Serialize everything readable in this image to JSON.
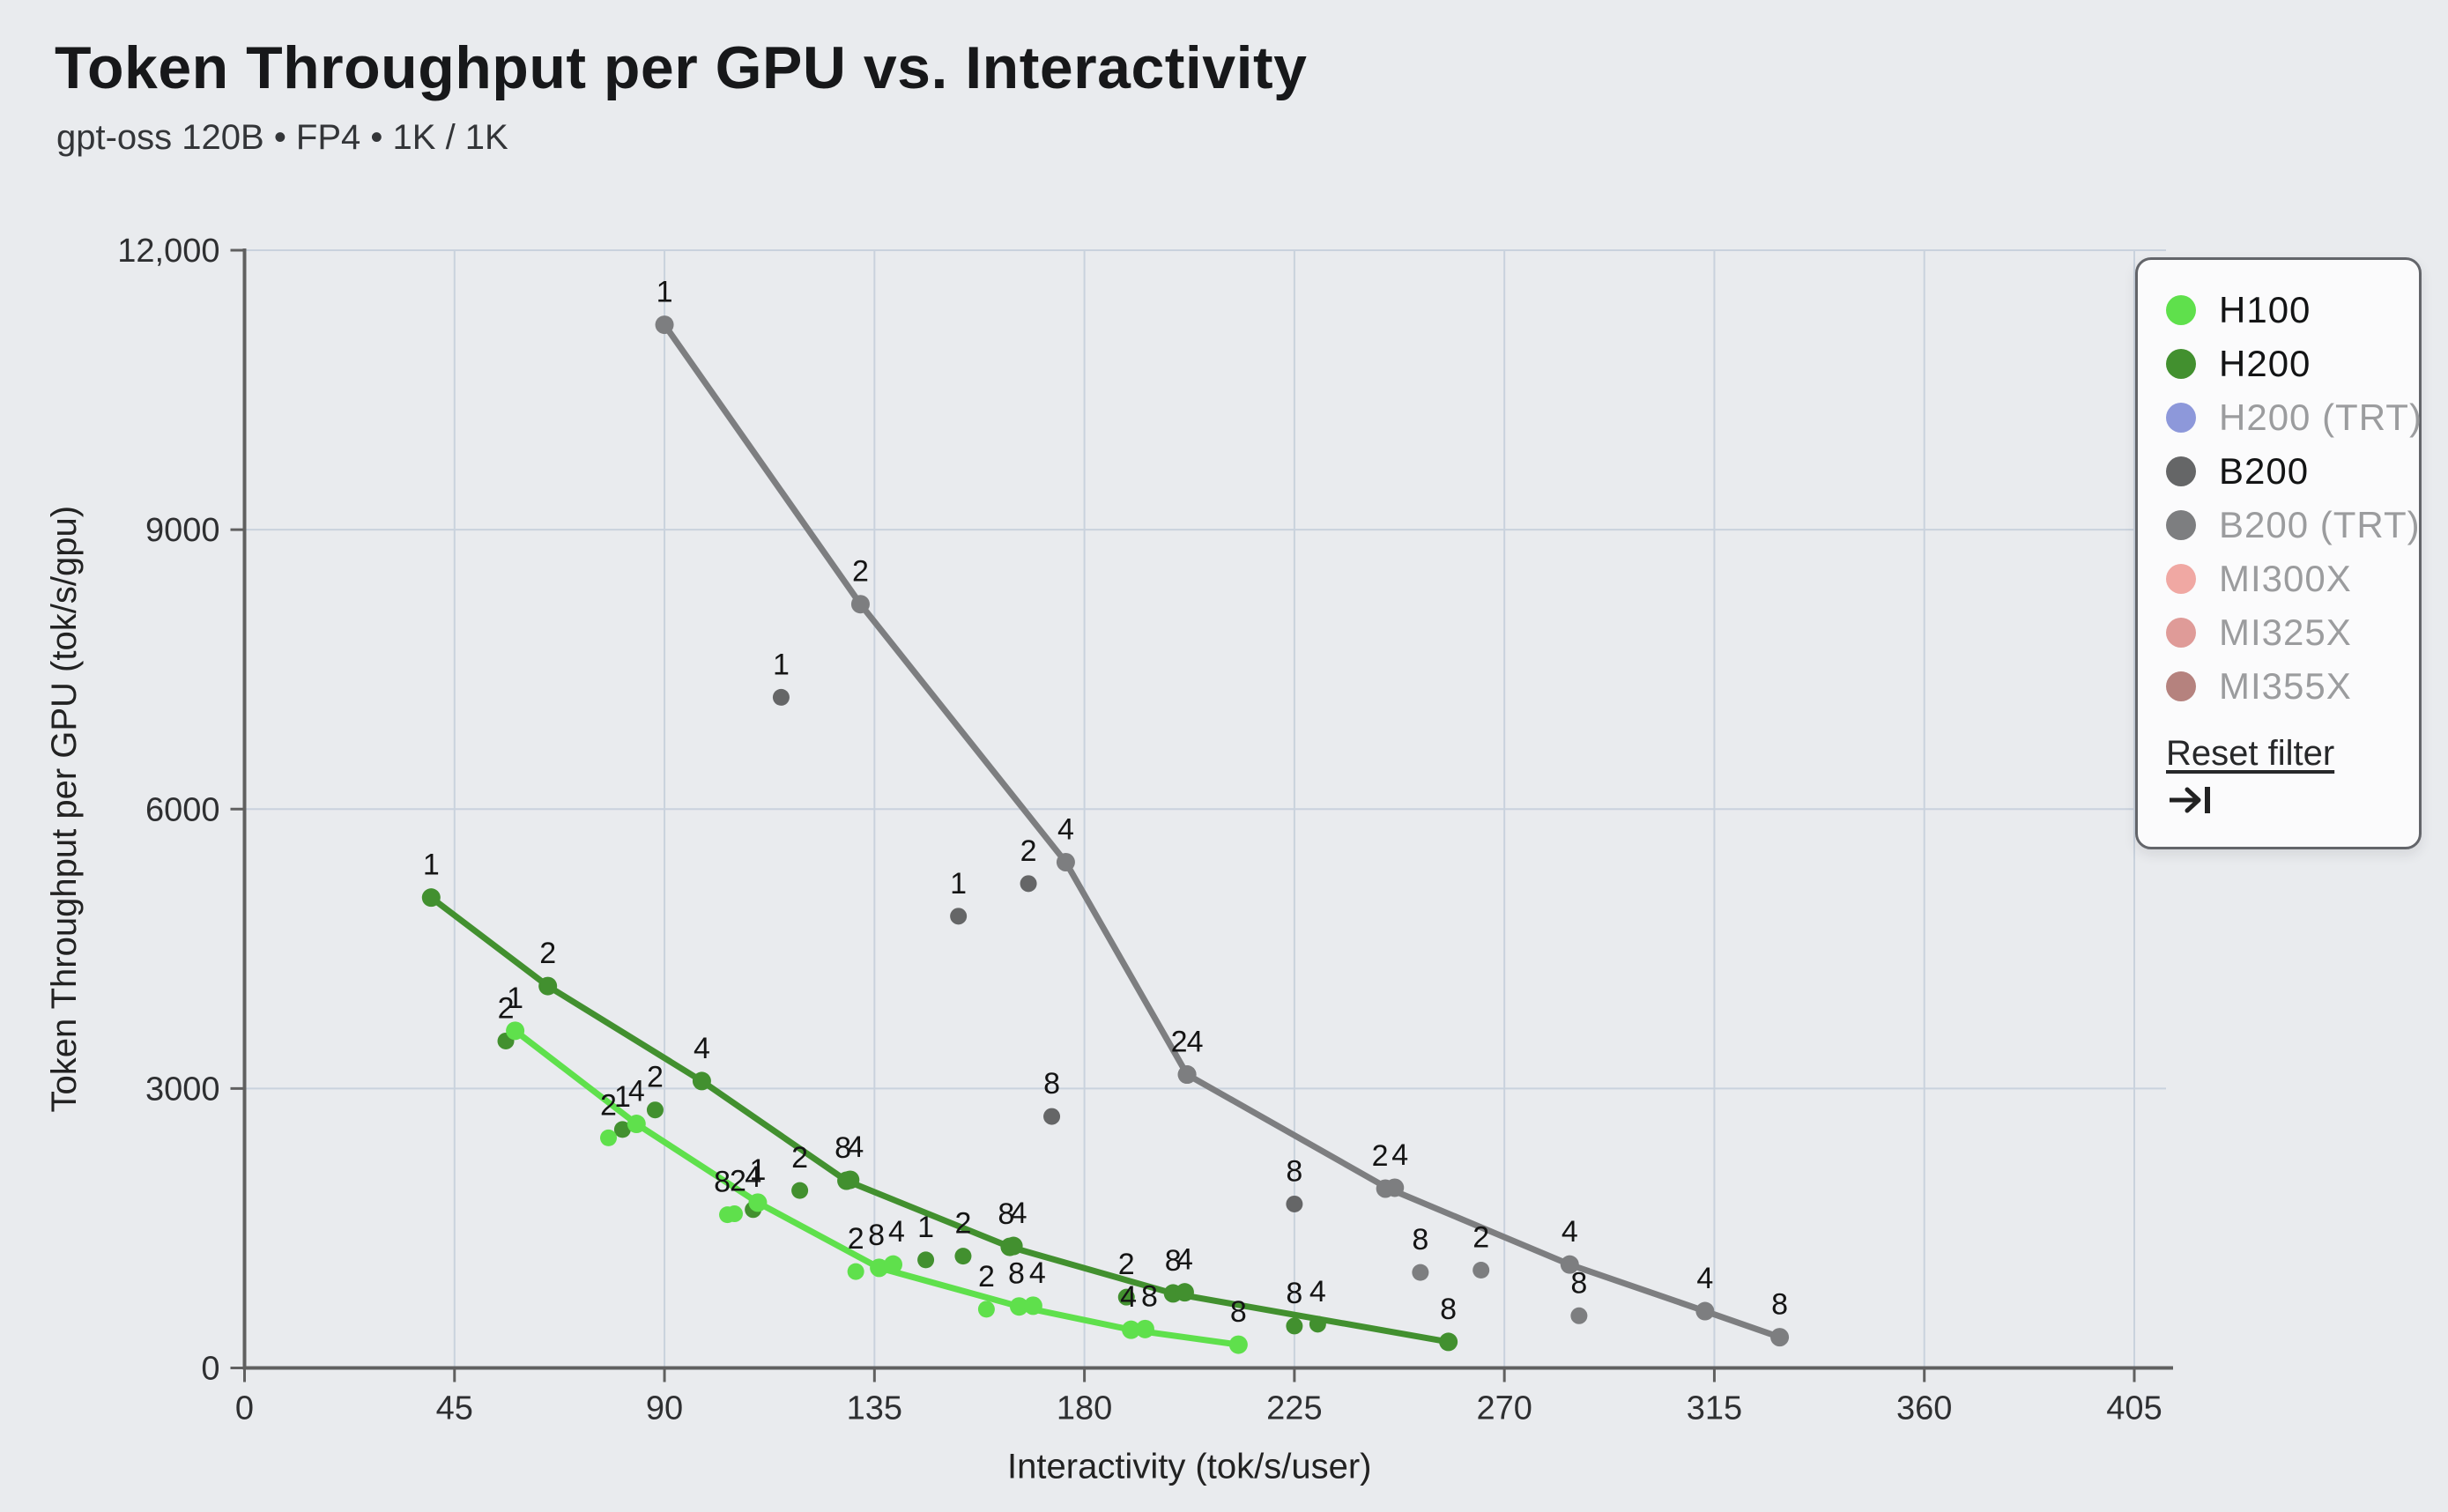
{
  "header": {
    "title": "Token Throughput per GPU vs. Interactivity",
    "subtitle": "gpt-oss 120B • FP4 • 1K / 1K"
  },
  "legend": {
    "items": [
      {
        "label": "H100",
        "color": "#5fe04c",
        "dimmed": false
      },
      {
        "label": "H200",
        "color": "#42902f",
        "dimmed": false
      },
      {
        "label": "H200 (TRT)",
        "color": "#8d98da",
        "dimmed": true
      },
      {
        "label": "B200",
        "color": "#656667",
        "dimmed": false
      },
      {
        "label": "B200 (TRT)",
        "color": "#7d7e80",
        "dimmed": true
      },
      {
        "label": "MI300X",
        "color": "#f0a8a3",
        "dimmed": true
      },
      {
        "label": "MI325X",
        "color": "#df9b98",
        "dimmed": true
      },
      {
        "label": "MI355X",
        "color": "#b5827e",
        "dimmed": true
      }
    ],
    "reset_label": "Reset filter",
    "reset_icon": "arrow-right-to-bar"
  },
  "chart_data": {
    "type": "scatter",
    "title": "Token Throughput per GPU vs. Interactivity",
    "xlabel": "Interactivity (tok/s/user)",
    "ylabel": "Token Throughput per GPU (tok/s/gpu)",
    "xlim": [
      0,
      405
    ],
    "ylim": [
      0,
      12000
    ],
    "grid": true,
    "legend_position": "right",
    "x_ticks": [
      {
        "v": 0,
        "label": "0"
      },
      {
        "v": 45,
        "label": "45"
      },
      {
        "v": 90,
        "label": "90"
      },
      {
        "v": 135,
        "label": "135"
      },
      {
        "v": 180,
        "label": "180"
      },
      {
        "v": 225,
        "label": "225"
      },
      {
        "v": 270,
        "label": "270"
      },
      {
        "v": 315,
        "label": "315"
      },
      {
        "v": 360,
        "label": "360"
      },
      {
        "v": 405,
        "label": "405"
      }
    ],
    "y_ticks": [
      {
        "v": 0,
        "label": "0"
      },
      {
        "v": 3000,
        "label": "3000"
      },
      {
        "v": 6000,
        "label": "6000"
      },
      {
        "v": 9000,
        "label": "9000"
      },
      {
        "v": 12000,
        "label": "12,000"
      }
    ],
    "series": [
      {
        "name": "B200 (TRT)",
        "color": "#7d7e80",
        "frontier": [
          [
            90,
            11200
          ],
          [
            132,
            8200
          ],
          [
            176,
            5430
          ],
          [
            202,
            3150
          ],
          [
            245,
            1930
          ],
          [
            284,
            1110
          ],
          [
            313,
            610
          ],
          [
            329,
            330
          ]
        ],
        "points": [
          {
            "x": 90,
            "y": 11200,
            "label": "1",
            "on_line": true
          },
          {
            "x": 132,
            "y": 8200,
            "label": "2",
            "on_line": true
          },
          {
            "x": 176,
            "y": 5430,
            "label": "4",
            "on_line": true
          },
          {
            "x": 202,
            "y": 3150,
            "label": "2",
            "lx": -9,
            "on_line": true
          },
          {
            "x": 202,
            "y": 3150,
            "label": "4",
            "lx": 9,
            "on_line": true
          },
          {
            "x": 244.5,
            "y": 1925,
            "label": "2",
            "lx": -6,
            "on_line": true
          },
          {
            "x": 246.5,
            "y": 1935,
            "label": "4",
            "lx": 6,
            "on_line": true
          },
          {
            "x": 284,
            "y": 1110,
            "label": "4",
            "on_line": true
          },
          {
            "x": 313,
            "y": 610,
            "label": "4",
            "on_line": true
          },
          {
            "x": 329,
            "y": 330,
            "label": "8",
            "on_line": true
          },
          {
            "x": 252,
            "y": 1025,
            "label": "8",
            "on_line": false
          },
          {
            "x": 265,
            "y": 1050,
            "label": "2",
            "on_line": false
          },
          {
            "x": 286,
            "y": 560,
            "label": "8",
            "on_line": false
          }
        ]
      },
      {
        "name": "B200",
        "color": "#656667",
        "frontier": [],
        "points": [
          {
            "x": 115,
            "y": 7200,
            "label": "1",
            "on_line": false
          },
          {
            "x": 153,
            "y": 4850,
            "label": "1",
            "on_line": false
          },
          {
            "x": 168,
            "y": 5200,
            "label": "2",
            "on_line": false
          },
          {
            "x": 173,
            "y": 2700,
            "label": "8",
            "on_line": false
          },
          {
            "x": 225,
            "y": 1760,
            "label": "8",
            "on_line": false
          }
        ]
      },
      {
        "name": "H200",
        "color": "#42902f",
        "frontier": [
          [
            40,
            5050
          ],
          [
            65,
            4100
          ],
          [
            98,
            3080
          ],
          [
            129,
            2010
          ],
          [
            164,
            1300
          ],
          [
            199,
            800
          ],
          [
            258,
            280
          ]
        ],
        "points": [
          {
            "x": 40,
            "y": 5050,
            "label": "1",
            "on_line": true
          },
          {
            "x": 65,
            "y": 4100,
            "label": "2",
            "on_line": true
          },
          {
            "x": 98,
            "y": 3080,
            "label": "4",
            "on_line": true
          },
          {
            "x": 129,
            "y": 2010,
            "label": "8",
            "lx": -4,
            "on_line": true
          },
          {
            "x": 129.8,
            "y": 2020,
            "label": "4",
            "lx": 6,
            "on_line": true
          },
          {
            "x": 164,
            "y": 1300,
            "label": "8",
            "lx": -4,
            "on_line": true
          },
          {
            "x": 164.8,
            "y": 1310,
            "label": "4",
            "lx": 6,
            "on_line": true
          },
          {
            "x": 199,
            "y": 800,
            "label": "8",
            "on_line": true
          },
          {
            "x": 201.5,
            "y": 812,
            "label": "4",
            "on_line": true
          },
          {
            "x": 258,
            "y": 280,
            "label": "8",
            "on_line": true
          },
          {
            "x": 56,
            "y": 3510,
            "label": "2",
            "on_line": false
          },
          {
            "x": 81,
            "y": 2560,
            "label": "1",
            "on_line": false
          },
          {
            "x": 88,
            "y": 2770,
            "label": "2",
            "on_line": false
          },
          {
            "x": 109,
            "y": 1700,
            "label": "4",
            "on_line": false
          },
          {
            "x": 119,
            "y": 1905,
            "label": "2",
            "on_line": false
          },
          {
            "x": 146,
            "y": 1160,
            "label": "1",
            "on_line": false
          },
          {
            "x": 154,
            "y": 1200,
            "label": "2",
            "on_line": false
          },
          {
            "x": 189,
            "y": 760,
            "label": "2",
            "on_line": false
          },
          {
            "x": 225,
            "y": 450,
            "label": "8",
            "on_line": false
          },
          {
            "x": 230,
            "y": 470,
            "label": "4",
            "on_line": false
          }
        ]
      },
      {
        "name": "H100",
        "color": "#5fe04c",
        "frontier": [
          [
            58,
            3620
          ],
          [
            84,
            2620
          ],
          [
            110,
            1775
          ],
          [
            136,
            1075
          ],
          [
            166,
            660
          ],
          [
            190,
            410
          ],
          [
            213,
            250
          ]
        ],
        "points": [
          {
            "x": 58,
            "y": 3620,
            "label": "1",
            "on_line": true
          },
          {
            "x": 84,
            "y": 2620,
            "label": "4",
            "on_line": true
          },
          {
            "x": 110,
            "y": 1775,
            "label": "1",
            "on_line": true
          },
          {
            "x": 136,
            "y": 1075,
            "label": "8",
            "lx": -3,
            "on_line": true
          },
          {
            "x": 139,
            "y": 1110,
            "label": "4",
            "lx": 4,
            "on_line": true
          },
          {
            "x": 166,
            "y": 660,
            "label": "8",
            "lx": -3,
            "on_line": true
          },
          {
            "x": 169,
            "y": 668,
            "label": "4",
            "lx": 5,
            "on_line": true
          },
          {
            "x": 190,
            "y": 410,
            "label": "4",
            "lx": -3,
            "on_line": true
          },
          {
            "x": 193,
            "y": 418,
            "label": "8",
            "lx": 5,
            "on_line": true
          },
          {
            "x": 213,
            "y": 250,
            "label": "8",
            "on_line": true
          },
          {
            "x": 78,
            "y": 2470,
            "label": "2",
            "on_line": false
          },
          {
            "x": 103.5,
            "y": 1645,
            "label": "8",
            "lx": -6,
            "on_line": false
          },
          {
            "x": 105,
            "y": 1655,
            "label": "2",
            "lx": 4,
            "on_line": false
          },
          {
            "x": 131,
            "y": 1035,
            "label": "2",
            "on_line": false
          },
          {
            "x": 159,
            "y": 630,
            "label": "2",
            "on_line": false
          }
        ]
      }
    ]
  }
}
